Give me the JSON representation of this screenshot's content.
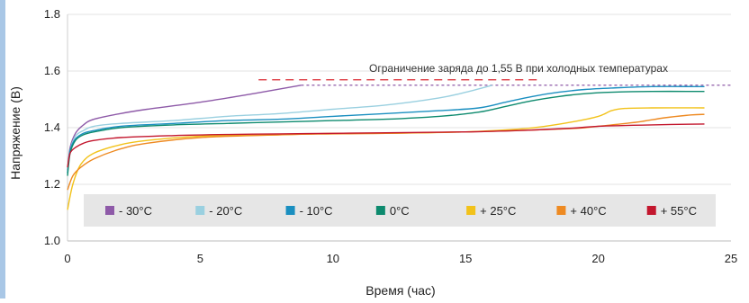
{
  "chart_data": {
    "type": "line",
    "title": "",
    "xlabel": "Время (час)",
    "ylabel": "Напряжение (В)",
    "xlim": [
      0,
      25
    ],
    "ylim": [
      1.0,
      1.8
    ],
    "xticks": [
      0,
      5,
      10,
      15,
      20,
      25
    ],
    "xtick_labels": [
      "0",
      "5",
      "10",
      "15",
      "20",
      "25"
    ],
    "yticks": [
      1.0,
      1.2,
      1.4,
      1.6,
      1.8
    ],
    "ytick_labels": [
      "1.0",
      "1.2",
      "1.4",
      "1.6",
      "1.8"
    ],
    "grid": "horizontal",
    "legend_position": "bottom-inside",
    "annotation": {
      "text": "Ограничение заряда до 1,55 В при холодных температурах",
      "y": 1.55,
      "colors": [
        "#d9262f",
        "#8e5aa8"
      ]
    },
    "series": [
      {
        "name": "- 30°C",
        "color": "#8e5aa8",
        "x": [
          0,
          0.1,
          0.3,
          0.6,
          1,
          2,
          3,
          5,
          7,
          8.8
        ],
        "y": [
          1.25,
          1.33,
          1.38,
          1.41,
          1.43,
          1.45,
          1.465,
          1.49,
          1.52,
          1.55
        ]
      },
      {
        "name": "- 20°C",
        "color": "#9ad0e0",
        "x": [
          0,
          0.1,
          0.3,
          0.6,
          1,
          2,
          4,
          6,
          8,
          10,
          12,
          14,
          15,
          16
        ],
        "y": [
          1.24,
          1.32,
          1.37,
          1.39,
          1.405,
          1.415,
          1.425,
          1.44,
          1.45,
          1.465,
          1.48,
          1.505,
          1.525,
          1.55
        ]
      },
      {
        "name": "- 10°C",
        "color": "#1a8fc0",
        "x": [
          0,
          0.1,
          0.3,
          0.6,
          1,
          2,
          4,
          6,
          8,
          10,
          12,
          14,
          15.5,
          16.5,
          17.5,
          18.5,
          19.5,
          20.5,
          22,
          24
        ],
        "y": [
          1.24,
          1.32,
          1.36,
          1.38,
          1.39,
          1.405,
          1.415,
          1.425,
          1.43,
          1.44,
          1.45,
          1.46,
          1.47,
          1.49,
          1.51,
          1.525,
          1.535,
          1.54,
          1.545,
          1.545
        ]
      },
      {
        "name": "0°C",
        "color": "#0d8a6e",
        "x": [
          0,
          0.1,
          0.3,
          0.6,
          1,
          2,
          4,
          6,
          8,
          10,
          12,
          14,
          15.5,
          16.5,
          17.5,
          18.5,
          19.5,
          20.5,
          22,
          24
        ],
        "y": [
          1.23,
          1.31,
          1.355,
          1.375,
          1.385,
          1.4,
          1.41,
          1.415,
          1.42,
          1.425,
          1.43,
          1.44,
          1.455,
          1.475,
          1.495,
          1.51,
          1.52,
          1.525,
          1.528,
          1.528
        ]
      },
      {
        "name": "+ 25°C",
        "color": "#f2c21a",
        "x": [
          0,
          0.2,
          0.5,
          1,
          2,
          3,
          5,
          8,
          10,
          12,
          15,
          17,
          18,
          19,
          20,
          20.5,
          21,
          22,
          24
        ],
        "y": [
          1.11,
          1.2,
          1.27,
          1.31,
          1.34,
          1.355,
          1.37,
          1.375,
          1.38,
          1.38,
          1.385,
          1.395,
          1.405,
          1.42,
          1.44,
          1.46,
          1.468,
          1.47,
          1.47
        ]
      },
      {
        "name": "+ 40°C",
        "color": "#ee8a22",
        "x": [
          0,
          0.2,
          0.5,
          1,
          2,
          3,
          5,
          8,
          10,
          12,
          15,
          17,
          18.5,
          19.5,
          20.5,
          21.5,
          22.5,
          23.5,
          24
        ],
        "y": [
          1.18,
          1.23,
          1.26,
          1.29,
          1.325,
          1.345,
          1.365,
          1.375,
          1.378,
          1.38,
          1.385,
          1.39,
          1.395,
          1.4,
          1.41,
          1.42,
          1.435,
          1.445,
          1.447
        ]
      },
      {
        "name": "+ 55°C",
        "color": "#c3172e",
        "x": [
          0,
          0.1,
          0.3,
          0.6,
          1,
          2,
          4,
          6,
          8,
          10,
          12,
          15,
          17,
          19,
          20,
          22,
          24
        ],
        "y": [
          1.26,
          1.31,
          1.33,
          1.345,
          1.355,
          1.365,
          1.372,
          1.376,
          1.378,
          1.38,
          1.382,
          1.385,
          1.39,
          1.398,
          1.405,
          1.41,
          1.413
        ]
      }
    ]
  }
}
